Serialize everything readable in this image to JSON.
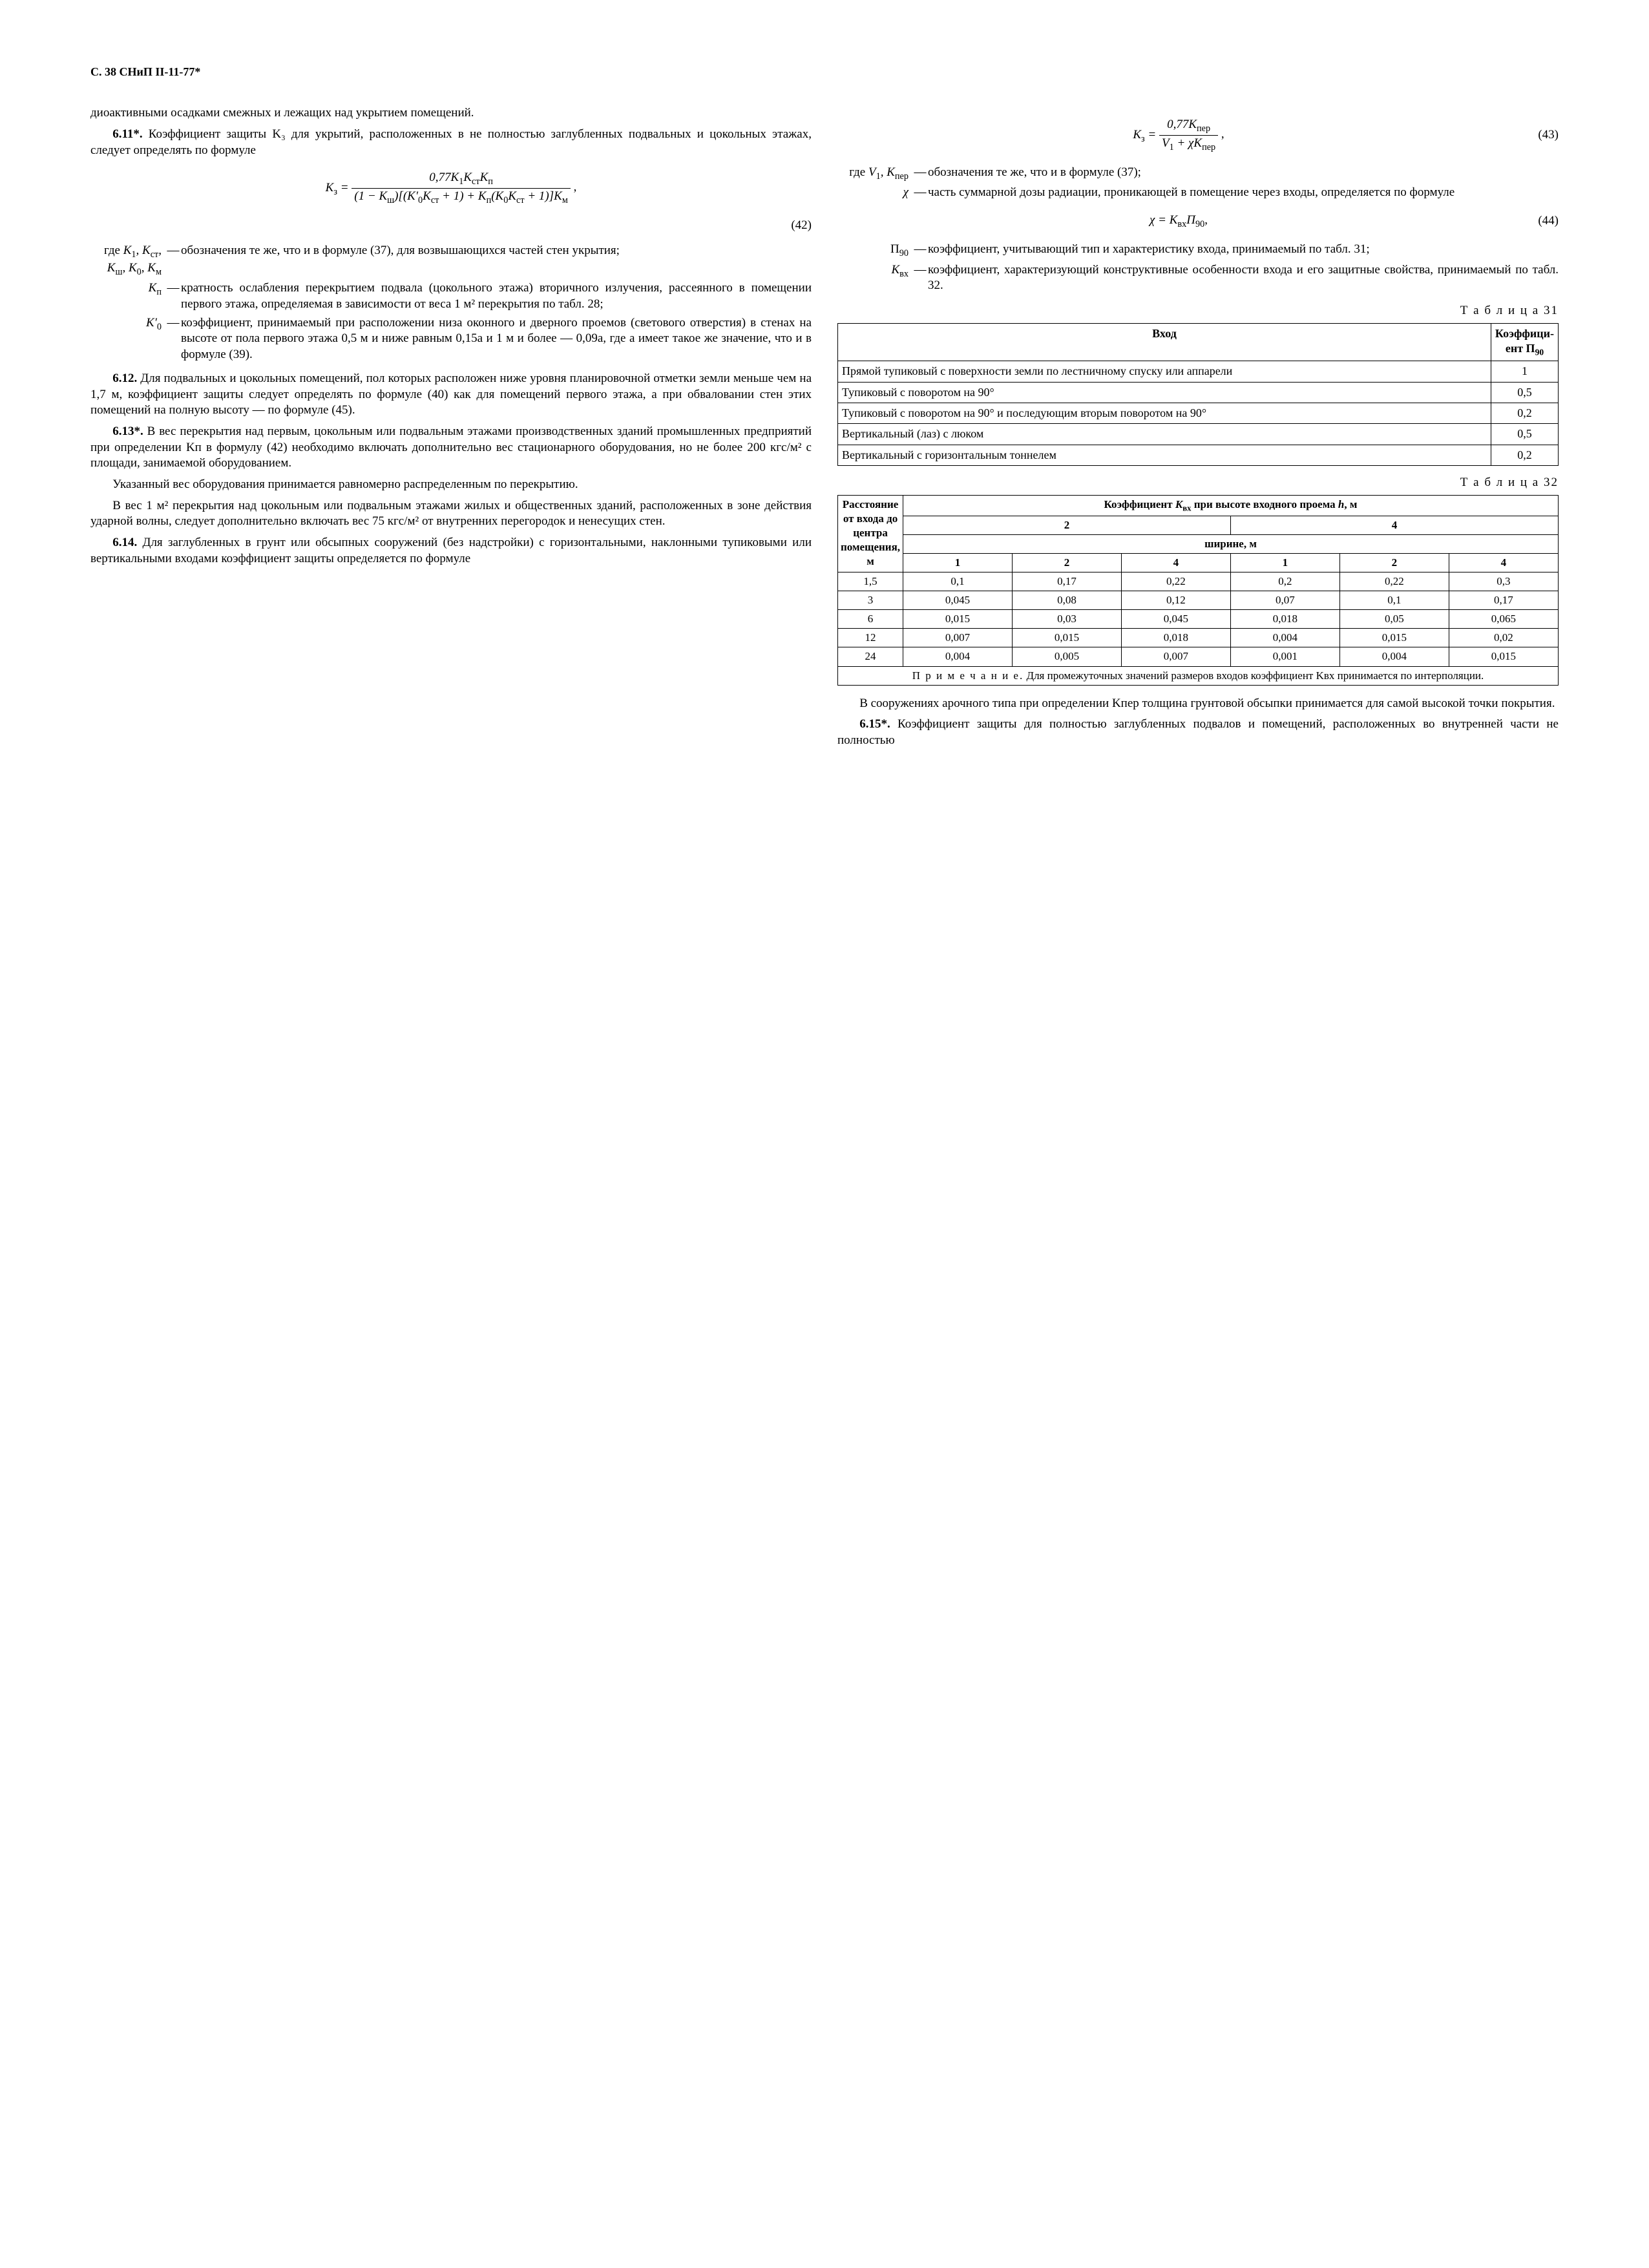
{
  "header": "С. 38 СНиП II-11-77*",
  "left": {
    "p1": "диоактивными осадками смежных и лежащих над укрытием помещений.",
    "s611_label": "6.11*.",
    "s611": " Коэффициент защиты K₃ для укрытий, расположенных в не полностью заглубленных подвальных и цокольных этажах, следует определять по формуле",
    "eq42_num": "0,77K₁KстKп",
    "eq42_den": "(1 − Kш)[(K′₀Kст + 1) + Kп(K₀Kст + 1)]Kм",
    "eq42_lhs": "K₃ =",
    "eq42_n": "(42)",
    "where_intro": "где",
    "w1_sym": "K₁, Kст, Kш, K₀, Kм",
    "w1_txt": "обозначения те же, что и в формуле (37), для возвышающихся частей стен укрытия;",
    "w2_sym": "Kп",
    "w2_txt": "кратность ослабления перекрытием подвала (цокольного этажа) вторичного излучения, рассеянного в помещении первого этажа, определяемая в зависимости от веса 1 м² перекрытия по табл. 28;",
    "w3_sym": "K′₀",
    "w3_txt": "коэффициент, принимаемый при расположении низа оконного и дверного проемов (светового отверстия) в стенах на высоте от пола первого этажа 0,5 м и ниже равным 0,15а и 1 м и более — 0,09а, где а имеет такое же значение, что и в формуле (39).",
    "s612_label": "6.12.",
    "s612": " Для подвальных и цокольных помещений, пол которых расположен ниже уровня планировочной отметки земли меньше чем на 1,7 м, коэффициент защиты следует определять по формуле (40) как для помещений первого этажа, а при обваловании стен этих помещений на полную высоту — по формуле (45).",
    "s613_label": "6.13*.",
    "s613a": " В вес перекрытия над первым, цокольным или подвальным этажами производственных зданий промышленных предприятий при определении Kп в формулу (42) необходимо включать дополнительно вес стационарного оборудования, но не более 200 кгс/м² с площади, занимаемой оборудованием.",
    "s613b": "Указанный вес оборудования принимается равномерно распределенным по перекрытию.",
    "s613c": "В вес 1 м² перекрытия над цокольным или подвальным этажами жилых и общественных зданий, расположенных в зоне действия ударной волны, следует дополнительно включать вес 75 кгс/м² от внутренних перегородок и ненесущих стен.",
    "s614_label": "6.14.",
    "s614": " Для заглубленных в грунт или обсыпных сооружений (без надстройки) с горизонтальными, наклонными тупиковыми или вертикальными входами коэффициент защиты определяется по формуле"
  },
  "right": {
    "eq43_lhs": "K₃ =",
    "eq43_num": "0,77Kпер",
    "eq43_den": "V₁ + χKпер",
    "eq43_n": "(43)",
    "w1_sym": "V₁, Kпер",
    "w1_txt": "обозначения те же, что и в формуле (37);",
    "w2_sym": "χ",
    "w2_txt": "часть суммарной дозы радиации, проникающей в помещение через входы, определяется по формуле",
    "eq44": "χ = KвхП₉₀,",
    "eq44_n": "(44)",
    "w3_sym": "П₉₀",
    "w3_txt": "коэффициент, учитывающий тип и характеристику входа, принимаемый по табл. 31;",
    "w4_sym": "Kвх",
    "w4_txt": "коэффициент, характеризующий конструктивные особенности входа и его защитные свойства, принимаемый по табл. 32.",
    "t31_caption": "Т а б л и ц а   31",
    "t31": {
      "h1": "Вход",
      "h2": "Коэффициент П₉₀",
      "rows": [
        {
          "name": "Прямой тупиковый с поверхности земли по лестничному спуску или аппарели",
          "val": "1"
        },
        {
          "name": "Тупиковый с поворотом на 90°",
          "val": "0,5"
        },
        {
          "name": "Тупиковый с поворотом на 90° и последующим вторым поворотом на 90°",
          "val": "0,2"
        },
        {
          "name": "Вертикальный (лаз) с люком",
          "val": "0,5"
        },
        {
          "name": "Вертикальный с горизонтальным тоннелем",
          "val": "0,2"
        }
      ]
    },
    "t32_caption": "Т а б л и ц а   32",
    "t32": {
      "h_dist": "Расстояние от входа до центра помещения, м",
      "h_main": "Коэффициент Kвх при высоте входного проема h, м",
      "h_h2": "2",
      "h_h4": "4",
      "h_width": "ширине, м",
      "cols": [
        "1",
        "2",
        "4",
        "1",
        "2",
        "4"
      ],
      "rows": [
        {
          "d": "1,5",
          "v": [
            "0,1",
            "0,17",
            "0,22",
            "0,2",
            "0,22",
            "0,3"
          ]
        },
        {
          "d": "3",
          "v": [
            "0,045",
            "0,08",
            "0,12",
            "0,07",
            "0,1",
            "0,17"
          ]
        },
        {
          "d": "6",
          "v": [
            "0,015",
            "0,03",
            "0,045",
            "0,018",
            "0,05",
            "0,065"
          ]
        },
        {
          "d": "12",
          "v": [
            "0,007",
            "0,015",
            "0,018",
            "0,004",
            "0,015",
            "0,02"
          ]
        },
        {
          "d": "24",
          "v": [
            "0,004",
            "0,005",
            "0,007",
            "0,001",
            "0,004",
            "0,015"
          ]
        }
      ],
      "note_label": "П р и м е ч а н и е.",
      "note": " Для промежуточных значений размеров входов коэффициент Kвх принимается по интерполяции."
    },
    "p_after": "В сооружениях арочного типа при определении Kпер толщина грунтовой обсыпки принимается для самой высокой точки покрытия.",
    "s615_label": "6.15*.",
    "s615": " Коэффициент защиты для полностью заглубленных подвалов и помещений, расположенных во внутренней части не полностью"
  }
}
